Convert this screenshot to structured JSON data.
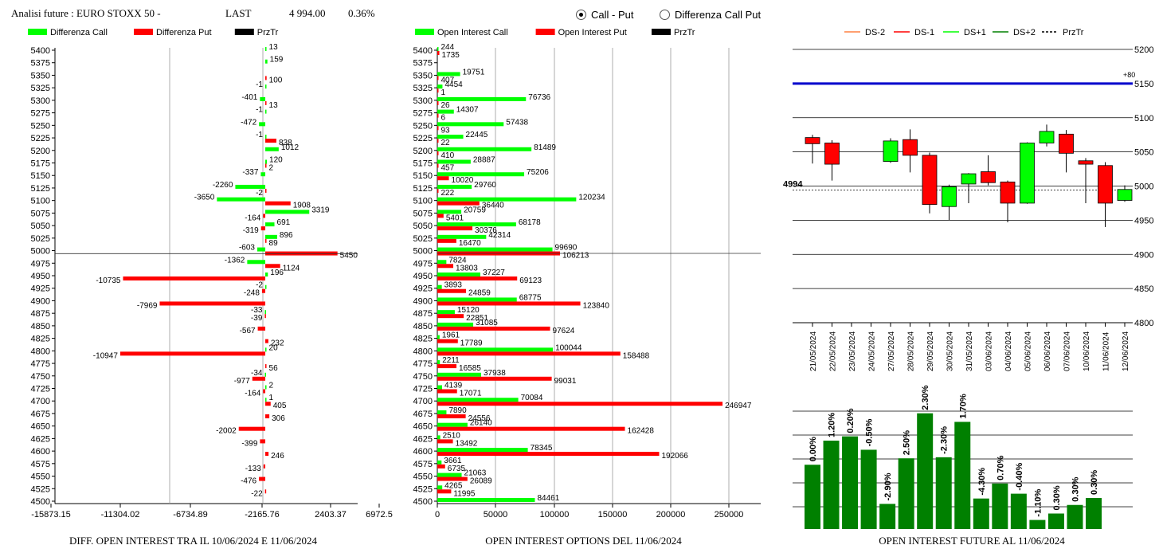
{
  "header": {
    "title": "Analisi future : EURO STOXX 50 -",
    "last_label": "LAST",
    "last_value": "4 994.00",
    "change": "0.36%"
  },
  "radio": {
    "call_put": "Call - Put",
    "diff_call_put": "Differenza Call Put",
    "selected": "call_put"
  },
  "footers": {
    "left": "DIFF. OPEN INTEREST TRA IL 10/06/2024 E 11/06/2024",
    "middle": "OPEN INTEREST OPTIONS DEL 11/06/2024",
    "right": "OPEN INTEREST FUTURE AL 11/06/2024"
  },
  "colors": {
    "green": "#00ff00",
    "red": "#ff0000",
    "dark_green": "#008000",
    "blue": "#0000cc"
  },
  "chart_data": [
    {
      "type": "bar",
      "orientation": "horizontal",
      "legend": [
        "Differenza Call",
        "Differenza Put",
        "PrzTr"
      ],
      "categories": [
        5400,
        5375,
        5350,
        5325,
        5300,
        5275,
        5250,
        5225,
        5200,
        5175,
        5150,
        5125,
        5100,
        5075,
        5050,
        5025,
        5000,
        4975,
        4950,
        4925,
        4900,
        4875,
        4850,
        4825,
        4800,
        4775,
        4750,
        4725,
        4700,
        4675,
        4650,
        4625,
        4600,
        4575,
        4550,
        4525,
        4500
      ],
      "series": [
        {
          "name": "Differenza Call",
          "values": [
            13,
            159,
            null,
            -1,
            -401,
            -1,
            -472,
            -1,
            1012,
            120,
            -337,
            -2260,
            -3650,
            3319,
            691,
            896,
            -603,
            -1362,
            196,
            -2,
            null,
            -33,
            null,
            null,
            20,
            null,
            -34,
            2,
            1,
            null,
            null,
            null,
            null,
            null,
            null,
            null,
            null
          ]
        },
        {
          "name": "Differenza Put",
          "values": [
            null,
            null,
            100,
            null,
            13,
            null,
            null,
            838,
            null,
            2,
            null,
            -2,
            1908,
            -164,
            -319,
            89,
            5450,
            1124,
            -10735,
            -248,
            -7969,
            -39,
            -567,
            232,
            -10947,
            56,
            -977,
            -164,
            405,
            306,
            -2002,
            -399,
            246,
            -133,
            -476,
            -22,
            null
          ]
        }
      ],
      "xticks": [
        "-15873.15",
        "-11304.02",
        "-6734.89",
        "-2165.76",
        "2403.37",
        "6972.5"
      ],
      "xlim": [
        -15873.15,
        6972.5
      ],
      "przTr": 4994
    },
    {
      "type": "bar",
      "orientation": "horizontal",
      "legend": [
        "Open Interest Call",
        "Open Interest Put",
        "PrzTr"
      ],
      "categories": [
        5400,
        5375,
        5350,
        5325,
        5300,
        5275,
        5250,
        5225,
        5200,
        5175,
        5150,
        5125,
        5100,
        5075,
        5050,
        5025,
        5000,
        4975,
        4950,
        4925,
        4900,
        4875,
        4850,
        4825,
        4800,
        4775,
        4750,
        4725,
        4700,
        4675,
        4650,
        4625,
        4600,
        4575,
        4550,
        4525,
        4500
      ],
      "series": [
        {
          "name": "Open Interest Call",
          "values": [
            244,
            null,
            19751,
            4454,
            76736,
            14307,
            57438,
            22445,
            81489,
            28887,
            75206,
            29760,
            120234,
            20759,
            68178,
            42314,
            99690,
            7824,
            37227,
            3893,
            68775,
            15120,
            31085,
            1961,
            100044,
            2211,
            37938,
            4139,
            70084,
            7890,
            26140,
            2510,
            78345,
            3661,
            21063,
            4265,
            84461
          ]
        },
        {
          "name": "Open Interest Put",
          "values": [
            1735,
            null,
            407,
            1,
            26,
            6,
            93,
            22,
            410,
            457,
            10020,
            222,
            36440,
            5401,
            30376,
            16470,
            106213,
            13803,
            69123,
            24859,
            123840,
            22851,
            97624,
            17789,
            158488,
            16585,
            99031,
            17071,
            246947,
            24556,
            162428,
            13492,
            192066,
            6735,
            26089,
            11995,
            null
          ]
        }
      ],
      "xticks": [
        "0",
        "50000",
        "100000",
        "150000",
        "200000",
        "250000"
      ],
      "xlim": [
        0,
        280000
      ]
    },
    {
      "type": "candlestick",
      "legend": [
        "DS-2",
        "DS-1",
        "DS+1",
        "DS+2",
        "PrzTr"
      ],
      "categories": [
        "21/05/2024",
        "22/05/2024",
        "23/05/2024",
        "24/05/2024",
        "27/05/2024",
        "28/05/2024",
        "29/05/2024",
        "30/05/2024",
        "31/05/2024",
        "03/06/2024",
        "04/06/2024",
        "05/06/2024",
        "06/06/2024",
        "07/06/2024",
        "10/06/2024",
        "11/06/2024",
        "12/06/2024"
      ],
      "ohlc": [
        [
          5071,
          5075,
          5033,
          5062
        ],
        [
          5063,
          5067,
          5008,
          5032
        ],
        null,
        null,
        [
          5036,
          5070,
          5034,
          5066
        ],
        [
          5068,
          5083,
          5020,
          5045
        ],
        [
          5045,
          5049,
          4960,
          4973
        ],
        [
          4970,
          5002,
          4950,
          4999
        ],
        [
          5003,
          5019,
          4975,
          5018
        ],
        [
          5021,
          5045,
          5001,
          5005
        ],
        [
          5006,
          5008,
          4947,
          4975
        ],
        [
          4975,
          5064,
          4974,
          5063
        ],
        [
          5063,
          5090,
          5058,
          5080
        ],
        [
          5076,
          5082,
          5020,
          5048
        ],
        [
          5037,
          5041,
          4975,
          5032
        ],
        [
          5030,
          5035,
          4940,
          4975
        ],
        [
          4979,
          5001,
          4977,
          4995
        ]
      ],
      "yticks": [
        5200,
        5150,
        5100,
        5050,
        5000,
        4950,
        4900,
        4850,
        4800
      ],
      "ylim": [
        4800,
        5200
      ],
      "blue_line": 5150,
      "blue_label": "+80",
      "przTr": 4994,
      "przTr_label": "4994"
    },
    {
      "type": "bar",
      "categories": [
        "21/05/2024",
        "22/05/2024",
        "23/05/2024",
        "24/05/2024",
        "27/05/2024",
        "28/05/2024",
        "29/05/2024",
        "30/05/2024",
        "31/05/2024",
        "03/06/2024",
        "04/06/2024",
        "05/06/2024",
        "06/06/2024",
        "07/06/2024",
        "10/06/2024",
        "11/06/2024"
      ],
      "values": [
        1.2,
        1.65,
        1.73,
        1.48,
        0.47,
        1.32,
        2.16,
        1.34,
        2.0,
        0.57,
        0.85,
        0.66,
        0.17,
        0.29,
        0.45,
        0.58
      ],
      "labels": [
        "0.00%",
        "1.20%",
        "0.20%",
        "-0.50%",
        "-2.90%",
        "2.50%",
        "2.30%",
        "-2.30%",
        "1.70%",
        "-4.30%",
        "0.70%",
        "-0.40%",
        "-1.10%",
        "0.30%",
        "0.30%",
        "0.30%"
      ],
      "ylim": [
        0,
        2.2
      ]
    }
  ]
}
